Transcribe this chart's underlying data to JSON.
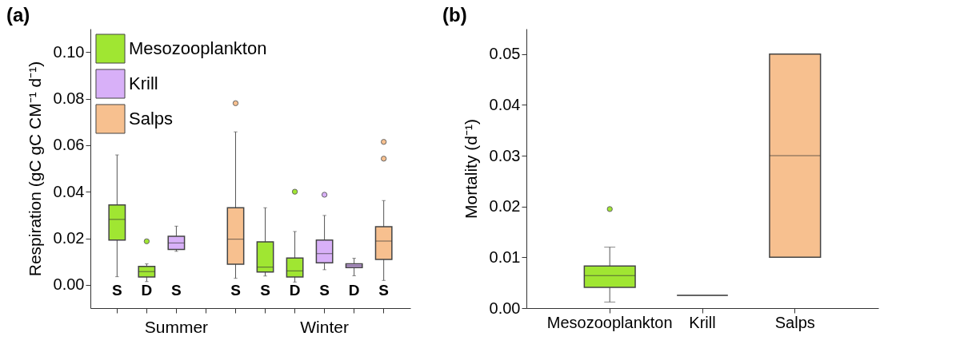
{
  "chart_data": [
    {
      "type": "box",
      "title": "(a)",
      "ylabel": "Respiration (gC gC CM⁻¹ d⁻¹)",
      "categories": [
        "S",
        "D",
        "S",
        null,
        "S",
        "S",
        "D",
        "S",
        "D",
        "S"
      ],
      "ylim": [
        -0.01,
        0.11
      ],
      "yticks": [
        {
          "value": 0,
          "label": "0.00"
        },
        {
          "value": 0.02,
          "label": "0.02"
        },
        {
          "value": 0.04,
          "label": "0.04"
        },
        {
          "value": 0.06,
          "label": "0.06"
        },
        {
          "value": 0.08,
          "label": "0.08"
        },
        {
          "value": 0.1,
          "label": "0.10"
        }
      ],
      "legend": "top left",
      "annotations": [
        "Summer",
        "Winter"
      ],
      "series": [
        {
          "name": "Mesozooplankton",
          "color": "#a0e632",
          "boxes": [
            {
              "low": 0.0035,
              "q1": 0.0192,
              "median": 0.0281,
              "q3": 0.0343,
              "high": 0.0558
            },
            {
              "low": 0.0014,
              "q1": 0.0034,
              "median": 0.0057,
              "q3": 0.0079,
              "high": 0.009,
              "outliers": [
                0.0187
              ]
            },
            null,
            null,
            null,
            {
              "low": 0.0038,
              "q1": 0.0055,
              "median": 0.0076,
              "q3": 0.0185,
              "high": 0.0331
            },
            {
              "low": 0.0012,
              "q1": 0.0034,
              "median": 0.006,
              "q3": 0.0115,
              "high": 0.0229,
              "outliers": [
                0.04
              ]
            },
            null,
            null,
            null
          ]
        },
        {
          "name": "Krill",
          "color": "#d8b0f8",
          "boxes": [
            null,
            null,
            {
              "low": 0.0144,
              "q1": 0.0152,
              "median": 0.018,
              "q3": 0.0209,
              "high": 0.0252
            },
            null,
            null,
            null,
            null,
            {
              "low": 0.0065,
              "q1": 0.0095,
              "median": 0.0134,
              "q3": 0.0192,
              "high": 0.0298,
              "outliers": [
                0.0387
              ]
            },
            {
              "low": 0.0039,
              "q1": 0.0074,
              "median": 0.0082,
              "q3": 0.009,
              "high": 0.0114
            },
            null
          ]
        },
        {
          "name": "Salps",
          "color": "#f7c08f",
          "boxes": [
            null,
            null,
            null,
            null,
            {
              "low": 0.0028,
              "q1": 0.0089,
              "median": 0.0196,
              "q3": 0.0331,
              "high": 0.0657,
              "outliers": [
                0.078
              ]
            },
            null,
            null,
            null,
            null,
            {
              "low": 0.0019,
              "q1": 0.0109,
              "median": 0.0188,
              "q3": 0.025,
              "high": 0.0362,
              "outliers": [
                0.0614,
                0.0542
              ]
            }
          ]
        }
      ]
    },
    {
      "type": "box",
      "title": "(b)",
      "ylabel": "Mortality (d⁻¹)",
      "categories": [
        "Mesozooplankton",
        "Krill",
        "Salps"
      ],
      "ylim": [
        0,
        0.055
      ],
      "yticks": [
        {
          "value": 0,
          "label": "0.00"
        },
        {
          "value": 0.01,
          "label": "0.01"
        },
        {
          "value": 0.02,
          "label": "0.02"
        },
        {
          "value": 0.03,
          "label": "0.03"
        },
        {
          "value": 0.04,
          "label": "0.04"
        },
        {
          "value": 0.05,
          "label": "0.05"
        }
      ],
      "colors": [
        "#a0e632",
        "#333333",
        "#f7c08f"
      ],
      "boxes": [
        {
          "low": 0.0012,
          "q1": 0.0041,
          "median": 0.0064,
          "q3": 0.0083,
          "high": 0.012,
          "outliers": [
            0.0195
          ]
        },
        {
          "low": 0.0025,
          "q1": 0.0025,
          "median": 0.0025,
          "q3": 0.0025,
          "high": 0.0025
        },
        {
          "low": 0.01,
          "q1": 0.01,
          "median": 0.03,
          "q3": 0.05,
          "high": 0.05
        }
      ]
    }
  ]
}
